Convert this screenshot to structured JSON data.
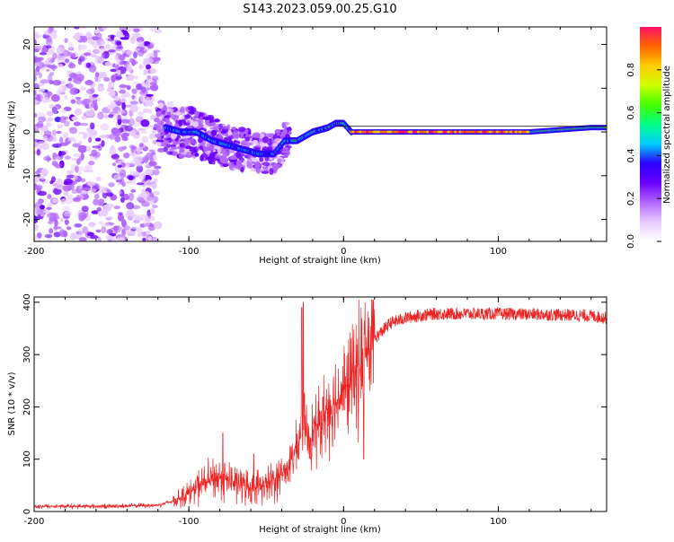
{
  "title": "S143.2023.059.00.25.G10",
  "chart_data": [
    {
      "type": "heatmap",
      "xlabel": "Height of straight line (km)",
      "ylabel": "Frequency (Hz)",
      "xlim": [
        -200,
        170
      ],
      "ylim": [
        -25,
        24
      ],
      "xticks": [
        -200,
        -100,
        0,
        100
      ],
      "yticks": [
        -20,
        -10,
        0,
        10,
        20
      ],
      "colorbar": {
        "label": "Normalized spectral amplitude",
        "range": [
          0,
          1
        ],
        "ticks": [
          "0.0",
          "0.2",
          "0.4",
          "0.6",
          "0.8"
        ],
        "colormap": [
          "#ffffff",
          "#e8ccff",
          "#b266ff",
          "#6a00ff",
          "#2a00ff",
          "#00ccff",
          "#00ff88",
          "#44ff00",
          "#ccff00",
          "#ffcc00",
          "#ff6600",
          "#ff1166"
        ]
      },
      "ridge": {
        "x": [
          -115,
          -105,
          -95,
          -85,
          -75,
          -65,
          -55,
          -45,
          -38,
          -30,
          -20,
          -10,
          -5,
          0,
          5,
          10,
          20,
          40,
          60,
          80,
          100,
          120,
          140,
          160,
          170
        ],
        "y": [
          1,
          0,
          0,
          -2,
          -3,
          -4,
          -5,
          -5,
          -2,
          -2,
          0,
          1,
          2,
          2,
          0,
          0,
          0,
          0,
          0,
          0,
          0,
          0,
          0.5,
          1,
          1
        ]
      },
      "noise_region": {
        "x": [
          -200,
          -120
        ],
        "y": [
          -25,
          24
        ]
      }
    },
    {
      "type": "line",
      "xlabel": "Height of straight line (km)",
      "ylabel": "SNR (10 * v/v)",
      "xlim": [
        -200,
        170
      ],
      "ylim": [
        0,
        410
      ],
      "xticks": [
        -200,
        -100,
        0,
        100
      ],
      "yticks": [
        0,
        100,
        200,
        300,
        400
      ],
      "series": [
        {
          "color": "#ee2222",
          "x": [
            -200,
            -150,
            -120,
            -110,
            -100,
            -90,
            -80,
            -70,
            -60,
            -50,
            -45,
            -40,
            -35,
            -30,
            -28,
            -25,
            -22,
            -20,
            -15,
            -10,
            -5,
            0,
            5,
            10,
            15,
            20,
            25,
            30,
            40,
            50,
            60,
            80,
            100,
            120,
            140,
            160,
            170
          ],
          "y": [
            10,
            10,
            12,
            20,
            35,
            55,
            65,
            55,
            45,
            50,
            60,
            70,
            90,
            120,
            140,
            160,
            140,
            150,
            170,
            200,
            210,
            230,
            250,
            280,
            310,
            330,
            345,
            360,
            370,
            375,
            378,
            378,
            378,
            377,
            376,
            374,
            370
          ]
        }
      ],
      "spikes": [
        {
          "x": -26,
          "y": 400
        },
        {
          "x": -27,
          "y": 390
        },
        {
          "x": 13,
          "y": 100
        },
        {
          "x": -78,
          "y": 150
        },
        {
          "x": -58,
          "y": 110
        }
      ]
    }
  ]
}
